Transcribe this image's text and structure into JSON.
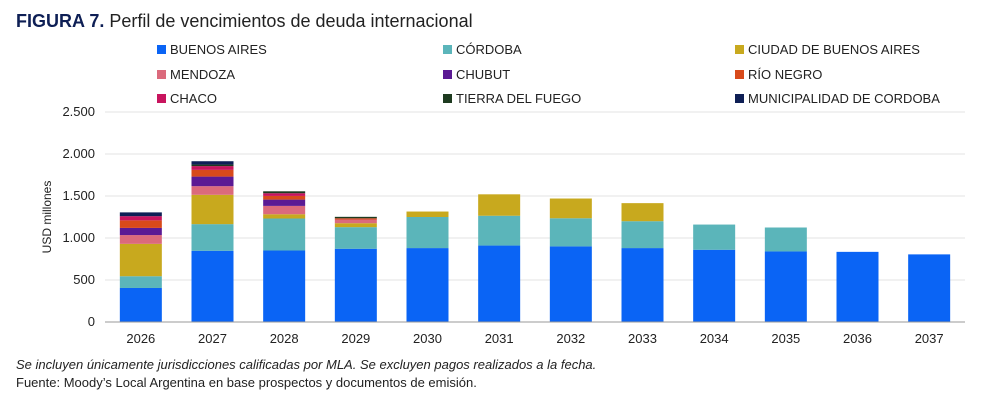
{
  "title": {
    "prefix": "FIGURA 7.",
    "text": "Perfil de vencimientos de deuda internacional"
  },
  "footnotes": [
    "Se incluyen únicamente jurisdicciones calificadas por MLA. Se excluyen pagos realizados a la fecha.",
    "Fuente: Moody’s Local Argentina en base prospectos y documentos de emisión."
  ],
  "chart_data": {
    "type": "bar",
    "stacked": true,
    "title": "Perfil de vencimientos de deuda internacional",
    "xlabel": "",
    "ylabel": "USD millones",
    "ylim": [
      0,
      2500
    ],
    "yticks": [
      0,
      500,
      1000,
      1500,
      2000,
      2500
    ],
    "ytick_labels": [
      "0",
      "500",
      "1.000",
      "1.500",
      "2.000",
      "2.500"
    ],
    "grid": true,
    "legend_position": "top",
    "categories": [
      "2026",
      "2027",
      "2028",
      "2029",
      "2030",
      "2031",
      "2032",
      "2033",
      "2034",
      "2035",
      "2036",
      "2037"
    ],
    "series": [
      {
        "name": "BUENOS AIRES",
        "color": "#0A64F5",
        "values": [
          405,
          848,
          851,
          872,
          880,
          910,
          900,
          880,
          860,
          840,
          835,
          805
        ]
      },
      {
        "name": "CÓRDOBA",
        "color": "#5BB5BA",
        "values": [
          140,
          317,
          381,
          257,
          370,
          355,
          335,
          320,
          300,
          285,
          0,
          0
        ]
      },
      {
        "name": "CIUDAD DE BUENOS AIRES",
        "color": "#C8A91E",
        "values": [
          385,
          349,
          51,
          47,
          65,
          255,
          235,
          215,
          0,
          0,
          0,
          0
        ]
      },
      {
        "name": "MENDOZA",
        "color": "#DB6A7C",
        "values": [
          105,
          103,
          99,
          44,
          0,
          0,
          0,
          0,
          0,
          0,
          0,
          0
        ]
      },
      {
        "name": "CHUBUT",
        "color": "#5B1A94",
        "values": [
          85,
          114,
          75,
          0,
          0,
          0,
          0,
          0,
          0,
          0,
          0,
          0
        ]
      },
      {
        "name": "RÍO NEGRO",
        "color": "#D84A1B",
        "values": [
          90,
          80,
          44,
          15,
          0,
          0,
          0,
          0,
          0,
          0,
          0,
          0
        ]
      },
      {
        "name": "CHACO",
        "color": "#C8145E",
        "values": [
          50,
          45,
          32,
          0,
          0,
          0,
          0,
          0,
          0,
          0,
          0,
          0
        ]
      },
      {
        "name": "TIERRA DEL FUEGO",
        "color": "#1E3B20",
        "values": [
          0,
          18,
          23,
          17,
          0,
          0,
          0,
          0,
          0,
          0,
          0,
          0
        ]
      },
      {
        "name": "MUNICIPALIDAD DE CORDOBA",
        "color": "#0E1F55",
        "values": [
          45,
          40,
          0,
          0,
          0,
          0,
          0,
          0,
          0,
          0,
          0,
          0
        ]
      }
    ]
  }
}
